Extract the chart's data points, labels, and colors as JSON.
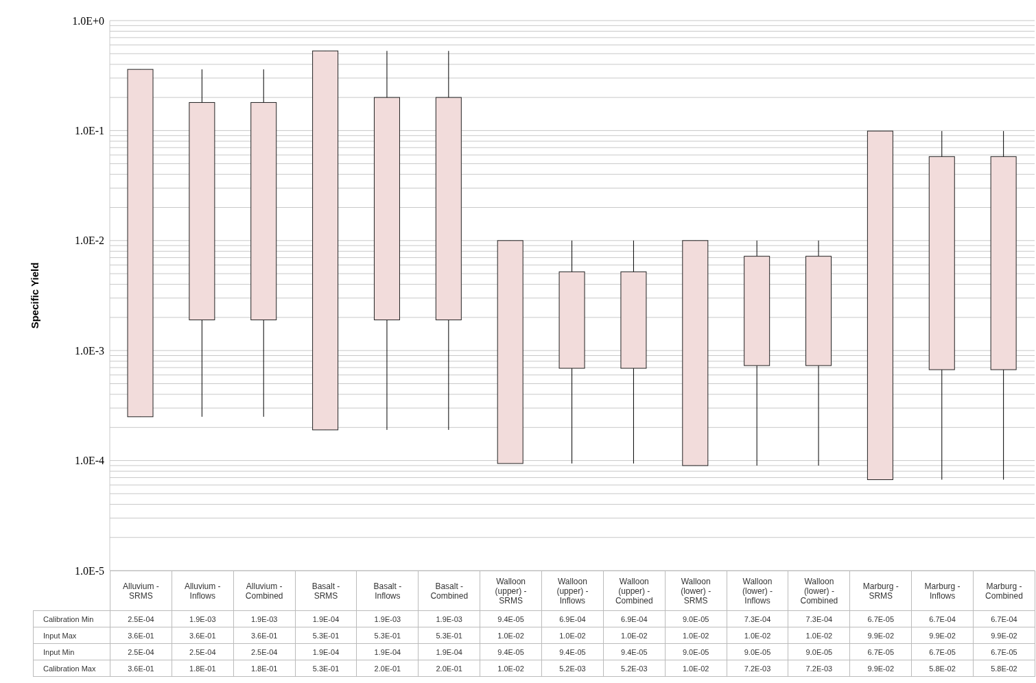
{
  "chart_data": {
    "type": "box",
    "ylabel": "Specific Yield",
    "categories": [
      "Alluvium - SRMS",
      "Alluvium - Inflows",
      "Alluvium - Combined",
      "Basalt - SRMS",
      "Basalt - Inflows",
      "Basalt - Combined",
      "Walloon (upper) - SRMS",
      "Walloon (upper) - Inflows",
      "Walloon (upper) - Combined",
      "Walloon (lower) - SRMS",
      "Walloon (lower) - Inflows",
      "Walloon (lower) - Combined",
      "Marburg - SRMS",
      "Marburg - Inflows",
      "Marburg - Combined"
    ],
    "boxes": [
      {
        "low": 0.00025,
        "q1": 0.00025,
        "q3": 0.36,
        "high": 0.36
      },
      {
        "low": 0.00025,
        "q1": 0.0019,
        "q3": 0.18,
        "high": 0.36
      },
      {
        "low": 0.00025,
        "q1": 0.0019,
        "q3": 0.18,
        "high": 0.36
      },
      {
        "low": 0.00019,
        "q1": 0.00019,
        "q3": 0.53,
        "high": 0.53
      },
      {
        "low": 0.00019,
        "q1": 0.0019,
        "q3": 0.2,
        "high": 0.53
      },
      {
        "low": 0.00019,
        "q1": 0.0019,
        "q3": 0.2,
        "high": 0.53
      },
      {
        "low": 9.4e-05,
        "q1": 9.4e-05,
        "q3": 0.01,
        "high": 0.01
      },
      {
        "low": 9.4e-05,
        "q1": 0.00069,
        "q3": 0.0052,
        "high": 0.01
      },
      {
        "low": 9.4e-05,
        "q1": 0.00069,
        "q3": 0.0052,
        "high": 0.01
      },
      {
        "low": 9e-05,
        "q1": 9e-05,
        "q3": 0.01,
        "high": 0.01
      },
      {
        "low": 9e-05,
        "q1": 0.00073,
        "q3": 0.0072,
        "high": 0.01
      },
      {
        "low": 9e-05,
        "q1": 0.00073,
        "q3": 0.0072,
        "high": 0.01
      },
      {
        "low": 6.7e-05,
        "q1": 6.7e-05,
        "q3": 0.099,
        "high": 0.099
      },
      {
        "low": 6.7e-05,
        "q1": 0.00067,
        "q3": 0.058,
        "high": 0.099
      },
      {
        "low": 6.7e-05,
        "q1": 0.00067,
        "q3": 0.058,
        "high": 0.099
      }
    ],
    "color": "#f2dcdb",
    "log": "y",
    "ylim": [
      1e-05,
      1
    ],
    "yticks": [
      {
        "value": 1e-05,
        "label": "1.0E-5"
      },
      {
        "value": 2e-05,
        "label": null
      },
      {
        "value": 3e-05,
        "label": null
      },
      {
        "value": 4e-05,
        "label": null
      },
      {
        "value": 5e-05,
        "label": null
      },
      {
        "value": 6e-05,
        "label": null
      },
      {
        "value": 7e-05,
        "label": null
      },
      {
        "value": 8e-05,
        "label": null
      },
      {
        "value": 9e-05,
        "label": null
      },
      {
        "value": 0.0001,
        "label": "1.0E-4"
      },
      {
        "value": 0.0002,
        "label": null
      },
      {
        "value": 0.0003,
        "label": null
      },
      {
        "value": 0.0004,
        "label": null
      },
      {
        "value": 0.0005,
        "label": null
      },
      {
        "value": 0.0006,
        "label": null
      },
      {
        "value": 0.0007,
        "label": null
      },
      {
        "value": 0.0008,
        "label": null
      },
      {
        "value": 0.0009,
        "label": null
      },
      {
        "value": 0.001,
        "label": "1.0E-3"
      },
      {
        "value": 0.002,
        "label": null
      },
      {
        "value": 0.003,
        "label": null
      },
      {
        "value": 0.004,
        "label": null
      },
      {
        "value": 0.005,
        "label": null
      },
      {
        "value": 0.006,
        "label": null
      },
      {
        "value": 0.007,
        "label": null
      },
      {
        "value": 0.008,
        "label": null
      },
      {
        "value": 0.009,
        "label": null
      },
      {
        "value": 0.01,
        "label": "1.0E-2"
      },
      {
        "value": 0.02,
        "label": null
      },
      {
        "value": 0.03,
        "label": null
      },
      {
        "value": 0.04,
        "label": null
      },
      {
        "value": 0.05,
        "label": null
      },
      {
        "value": 0.06,
        "label": null
      },
      {
        "value": 0.07,
        "label": null
      },
      {
        "value": 0.08,
        "label": null
      },
      {
        "value": 0.09,
        "label": null
      },
      {
        "value": 0.1,
        "label": "1.0E-1"
      },
      {
        "value": 0.2,
        "label": null
      },
      {
        "value": 0.3,
        "label": null
      },
      {
        "value": 0.4,
        "label": null
      },
      {
        "value": 0.5,
        "label": null
      },
      {
        "value": 0.6,
        "label": null
      },
      {
        "value": 0.7,
        "label": null
      },
      {
        "value": 0.8,
        "label": null
      },
      {
        "value": 0.9,
        "label": null
      },
      {
        "value": 1,
        "label": "1.0E+0"
      }
    ],
    "grid": "y",
    "annotations": [
      "Calibration Min",
      "2.5E-04",
      "1.9E-03",
      "1.9E-03",
      "1.9E-04",
      "1.9E-03",
      "1.9E-03",
      "9.4E-05",
      "6.9E-04",
      "6.9E-04",
      "9.0E-05",
      "7.3E-04",
      "7.3E-04",
      "6.7E-05",
      "6.7E-04",
      "6.7E-04",
      "Input Max",
      "3.6E-01",
      "3.6E-01",
      "3.6E-01",
      "5.3E-01",
      "5.3E-01",
      "5.3E-01",
      "1.0E-02",
      "1.0E-02",
      "1.0E-02",
      "1.0E-02",
      "1.0E-02",
      "1.0E-02",
      "9.9E-02",
      "9.9E-02",
      "9.9E-02",
      "Input Min",
      "2.5E-04",
      "2.5E-04",
      "2.5E-04",
      "1.9E-04",
      "1.9E-04",
      "1.9E-04",
      "9.4E-05",
      "9.4E-05",
      "9.4E-05",
      "9.0E-05",
      "9.0E-05",
      "9.0E-05",
      "6.7E-05",
      "6.7E-05",
      "6.7E-05",
      "Calibration Max",
      "3.6E-01",
      "1.8E-01",
      "1.8E-01",
      "5.3E-01",
      "2.0E-01",
      "2.0E-01",
      "1.0E-02",
      "5.2E-03",
      "5.2E-03",
      "1.0E-02",
      "7.2E-03",
      "7.2E-03",
      "9.9E-02",
      "5.8E-02",
      "5.8E-02"
    ]
  }
}
